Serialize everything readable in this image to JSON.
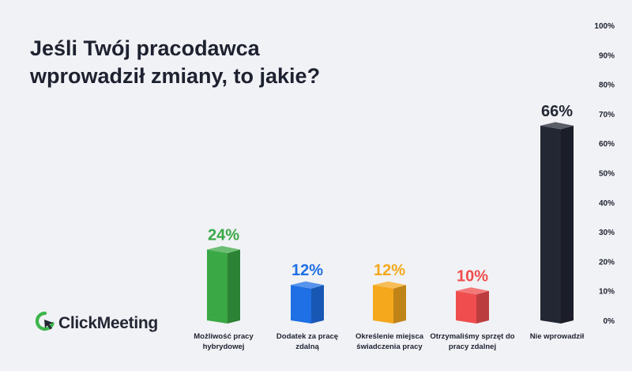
{
  "title": "Jeśli Twój pracodawca wprowadził zmiany, to jakie?",
  "logo": {
    "text": "ClickMeeting",
    "icon": "clickmeeting-logo-icon",
    "color": "#3cb54a"
  },
  "chart_data": {
    "type": "bar",
    "title": "Jeśli Twój pracodawca wprowadził zmiany, to jakie?",
    "categories": [
      [
        "Możliwość pracy",
        "hybrydowej"
      ],
      [
        "Dodatek za pracę",
        "zdalną"
      ],
      [
        "Określenie miejsca",
        "świadczenia pracy"
      ],
      [
        "Otrzymaliśmy sprzęt do",
        "pracy zdalnej"
      ],
      [
        "Nie wprowadził"
      ]
    ],
    "values": [
      24,
      12,
      12,
      10,
      66
    ],
    "value_labels": [
      "24%",
      "12%",
      "12%",
      "10%",
      "66%"
    ],
    "colors": [
      "#3aa844",
      "#1f6fe5",
      "#f5a81c",
      "#f04e4e",
      "#232733"
    ],
    "ylim": [
      0,
      100
    ],
    "yticks": [
      "0%",
      "10%",
      "20%",
      "30%",
      "40%",
      "50%",
      "60%",
      "70%",
      "80%",
      "90%",
      "100%"
    ],
    "grid": false,
    "legend": "none"
  }
}
